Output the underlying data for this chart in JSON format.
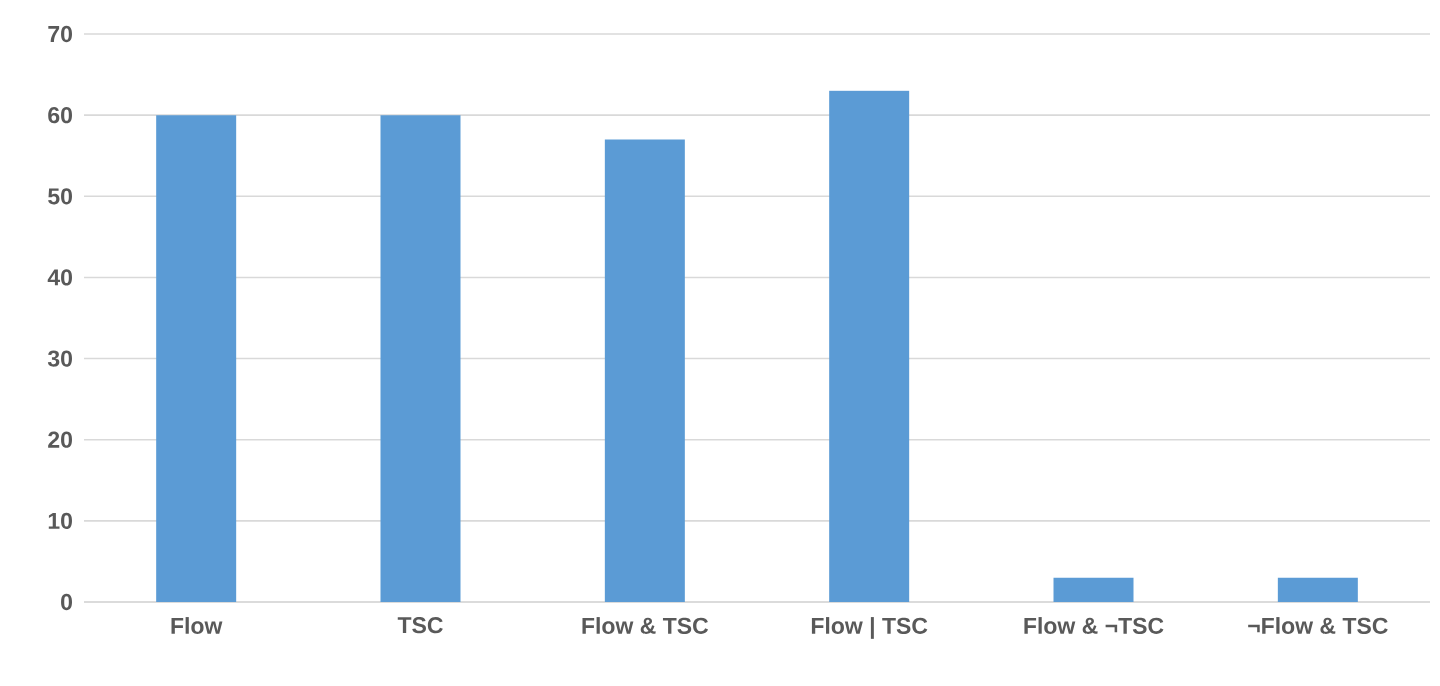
{
  "chart_data": {
    "type": "bar",
    "categories": [
      "Flow",
      "TSC",
      "Flow & TSC",
      "Flow | TSC",
      "Flow & ¬TSC",
      "¬Flow & TSC"
    ],
    "values": [
      60,
      60,
      57,
      63,
      3,
      3
    ],
    "color": "#5b9bd5",
    "ylim": [
      0,
      70
    ],
    "yticks": [
      0,
      10,
      20,
      30,
      40,
      50,
      60,
      70
    ],
    "grid": "y"
  }
}
